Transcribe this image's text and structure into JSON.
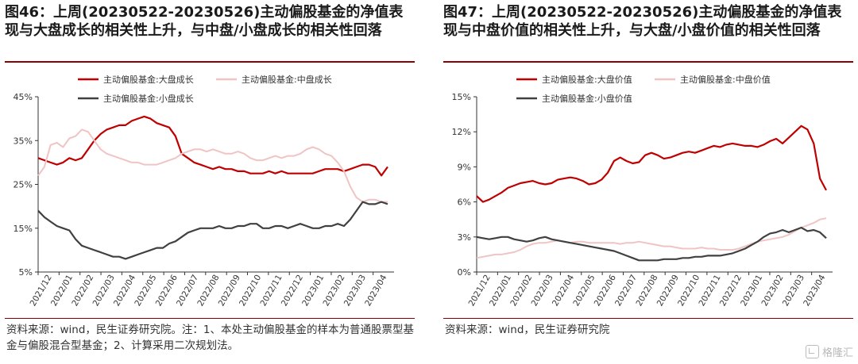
{
  "panels": [
    {
      "title": "图46：上周(20230522-20230526)主动偏股基金的净值表现与大盘成长的相关性上升，与中盘/小盘成长的相关性回落",
      "source": "资料来源：wind，民生证券研究院。注：1、本处主动偏股基金的样本为普通股票型基金与偏股混合型基金；2、计算采用二次规划法。"
    },
    {
      "title": "图47：上周(20230522-20230526)主动偏股基金的净值表现与中盘价值的相关性上升，与大盘/小盘价值的相关性回落",
      "source": "资料来源：wind，民生证券研究院"
    }
  ],
  "watermark": "格隆汇",
  "colors": {
    "dark_red": "#c00000",
    "light_pink": "#f0c4c4",
    "dark_gray": "#404040"
  },
  "chart_data": [
    {
      "type": "line",
      "x_ticks": [
        "2021/12",
        "2022/01",
        "2022/02",
        "2022/03",
        "2022/04",
        "2022/05",
        "2022/06",
        "2022/07",
        "2022/08",
        "2022/09",
        "2022/10",
        "2022/11",
        "2022/12",
        "2023/01",
        "2023/02",
        "2023/03",
        "2023/04"
      ],
      "y_ticks": [
        "45%",
        "35%",
        "25%",
        "15%",
        "5%"
      ],
      "ylim": [
        5,
        45
      ],
      "legend_position": "top",
      "series": [
        {
          "name": "主动偏股基金:大盘成长",
          "color": "#c00000",
          "values": [
            31,
            30.5,
            30,
            29.5,
            30,
            31,
            30.5,
            31,
            33,
            35,
            36.5,
            37.5,
            38,
            38.5,
            38.5,
            39.5,
            40,
            40.5,
            40,
            39,
            38.5,
            38,
            36,
            32,
            31,
            30,
            29.5,
            29,
            28.5,
            29,
            28.5,
            28.5,
            28,
            28,
            27.5,
            27.5,
            27.5,
            28,
            27.5,
            28,
            27.5,
            27.5,
            27.5,
            27.5,
            27.5,
            28,
            28.5,
            28.5,
            28.5,
            28,
            28.5,
            29,
            29.5,
            29.5,
            29,
            27,
            29
          ]
        },
        {
          "name": "主动偏股基金:中盘成长",
          "color": "#f0c4c4",
          "values": [
            27,
            29,
            34,
            34.5,
            33.5,
            35.5,
            36,
            37.5,
            37,
            35,
            33,
            32,
            31.5,
            31,
            30.5,
            30,
            30,
            29.5,
            29.5,
            29.5,
            30,
            30.5,
            31,
            32,
            32.5,
            33,
            33,
            32.5,
            33,
            32.5,
            32,
            32,
            32.5,
            32,
            31,
            30.5,
            30.5,
            31,
            31.5,
            31,
            31.5,
            31.5,
            32,
            33,
            33.5,
            33,
            32,
            31.5,
            30,
            28,
            24.5,
            22,
            21,
            21.5,
            21.5,
            21,
            21
          ]
        },
        {
          "name": "主动偏股基金:小盘成长",
          "color": "#404040",
          "values": [
            19,
            17.5,
            16.5,
            15.5,
            15,
            14.5,
            12.5,
            11,
            10.5,
            10,
            9.5,
            9,
            8.5,
            8.5,
            8,
            8.5,
            9,
            9.5,
            10,
            10.5,
            10.5,
            11.5,
            12,
            13,
            14,
            14.5,
            15,
            15,
            15,
            15.5,
            15,
            15,
            15.5,
            15.5,
            16,
            16,
            15,
            15,
            15.5,
            15.5,
            15,
            15.5,
            16,
            15.5,
            15,
            15,
            15.5,
            15.5,
            16,
            15.5,
            17,
            19,
            21,
            20.5,
            20.5,
            21,
            20.5
          ]
        }
      ]
    },
    {
      "type": "line",
      "x_ticks": [
        "2021/12",
        "2022/01",
        "2022/02",
        "2022/03",
        "2022/04",
        "2022/05",
        "2022/06",
        "2022/07",
        "2022/08",
        "2022/09",
        "2022/10",
        "2022/11",
        "2022/12",
        "2023/01",
        "2023/02",
        "2023/03",
        "2023/04"
      ],
      "y_ticks": [
        "15%",
        "12%",
        "9%",
        "6%",
        "3%",
        "0%"
      ],
      "ylim": [
        0,
        15
      ],
      "legend_position": "top",
      "series": [
        {
          "name": "主动偏股基金:大盘价值",
          "color": "#c00000",
          "values": [
            6.5,
            6.0,
            6.2,
            6.5,
            6.8,
            7.2,
            7.4,
            7.6,
            7.7,
            7.8,
            7.6,
            7.5,
            7.6,
            7.9,
            8.0,
            8.1,
            8.0,
            7.8,
            7.5,
            7.6,
            7.9,
            8.5,
            9.5,
            9.8,
            9.5,
            9.3,
            9.4,
            10.0,
            10.2,
            10.0,
            9.7,
            9.8,
            10.0,
            10.2,
            10.3,
            10.2,
            10.4,
            10.6,
            10.8,
            10.7,
            10.9,
            11.0,
            10.9,
            10.8,
            10.8,
            10.7,
            10.9,
            11.2,
            11.4,
            11.0,
            11.5,
            12.0,
            12.5,
            12.2,
            11.0,
            8.0,
            7.0
          ]
        },
        {
          "name": "主动偏股基金:中盘价值",
          "color": "#f0c4c4",
          "values": [
            1.2,
            1.3,
            1.4,
            1.5,
            1.5,
            1.6,
            1.7,
            1.9,
            2.2,
            2.4,
            2.5,
            2.5,
            2.6,
            2.7,
            2.6,
            2.5,
            2.6,
            2.6,
            2.5,
            2.5,
            2.5,
            2.5,
            2.5,
            2.4,
            2.5,
            2.5,
            2.6,
            2.5,
            2.4,
            2.3,
            2.2,
            2.2,
            2.1,
            2.0,
            2.0,
            2.0,
            2.1,
            2.0,
            2.0,
            1.9,
            1.9,
            1.9,
            2.0,
            2.2,
            2.4,
            2.6,
            2.7,
            2.8,
            2.9,
            3.0,
            3.2,
            3.5,
            3.8,
            4.0,
            4.2,
            4.5,
            4.6
          ]
        },
        {
          "name": "主动偏股基金:小盘价值",
          "color": "#404040",
          "values": [
            3.0,
            2.9,
            2.8,
            2.9,
            3.0,
            3.0,
            2.8,
            2.7,
            2.6,
            2.7,
            2.9,
            3.0,
            2.8,
            2.7,
            2.6,
            2.5,
            2.4,
            2.3,
            2.2,
            2.1,
            2.0,
            1.9,
            1.8,
            1.6,
            1.4,
            1.2,
            1.0,
            1.0,
            1.0,
            1.0,
            1.1,
            1.1,
            1.1,
            1.2,
            1.2,
            1.3,
            1.3,
            1.4,
            1.4,
            1.4,
            1.5,
            1.6,
            1.8,
            2.0,
            2.3,
            2.6,
            3.0,
            3.3,
            3.4,
            3.6,
            3.4,
            3.6,
            3.8,
            3.5,
            3.6,
            3.4,
            2.9
          ]
        }
      ]
    }
  ]
}
